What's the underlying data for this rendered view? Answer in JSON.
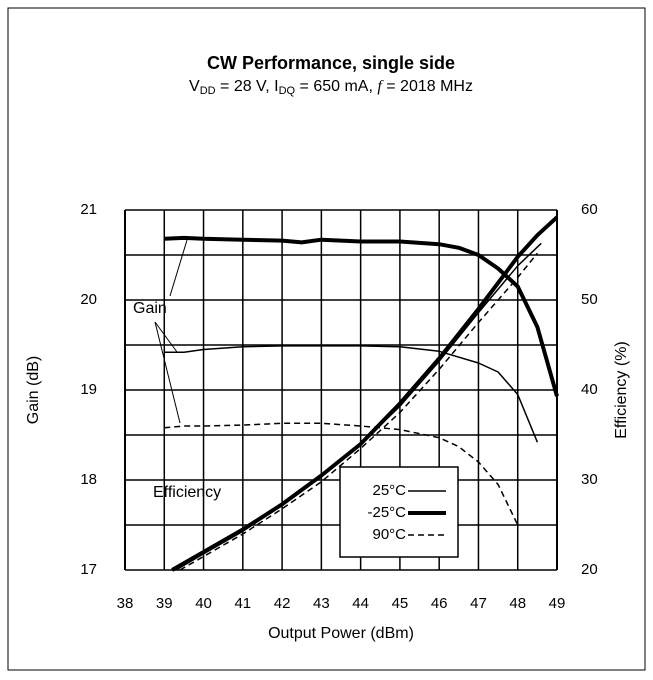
{
  "chart_data": {
    "type": "line",
    "title": "CW Performance, single side",
    "subtitle": [
      "V",
      "DD",
      " = 28 V, I",
      "DQ",
      " = 650 mA, ",
      "f",
      " = 2018 MHz"
    ],
    "xlabel": "Output Power (dBm)",
    "ylabel": "Gain (dB)",
    "y2label": "Efficiency (%)",
    "xlim": [
      38,
      49
    ],
    "xticks": [
      38,
      39,
      40,
      41,
      42,
      43,
      44,
      45,
      46,
      47,
      48,
      49
    ],
    "ylim": [
      17,
      21
    ],
    "yticks": [
      17,
      18,
      19,
      20,
      21
    ],
    "y2lim": [
      20,
      60
    ],
    "y2ticks": [
      20,
      30,
      40,
      50,
      60
    ],
    "grid": true,
    "color": "#000000",
    "annotations": [
      "Gain",
      "Efficiency"
    ],
    "series": [
      {
        "name": "25°C",
        "style": "solid",
        "axis": "y",
        "x": [
          39,
          39.5,
          40,
          41,
          42,
          43,
          44,
          45,
          46,
          47,
          47.5,
          48,
          48.5
        ],
        "values": [
          19.42,
          19.42,
          19.45,
          19.48,
          19.49,
          19.49,
          19.49,
          19.48,
          19.43,
          19.3,
          19.2,
          18.95,
          18.42
        ]
      },
      {
        "name": "-25°C",
        "style": "thick",
        "axis": "y",
        "x": [
          39,
          39.5,
          40,
          41,
          42,
          42.5,
          43,
          44,
          45,
          46,
          46.5,
          47,
          47.5,
          48,
          48.5,
          49
        ],
        "values": [
          20.68,
          20.69,
          20.68,
          20.67,
          20.66,
          20.64,
          20.67,
          20.65,
          20.65,
          20.62,
          20.58,
          20.5,
          20.35,
          20.15,
          19.7,
          18.93
        ]
      },
      {
        "name": "90°C",
        "style": "dashed",
        "axis": "y",
        "x": [
          39,
          39.5,
          40,
          41,
          42,
          43,
          44,
          45,
          46,
          46.5,
          47,
          47.5,
          48
        ],
        "values": [
          18.58,
          18.6,
          18.6,
          18.61,
          18.63,
          18.63,
          18.6,
          18.56,
          18.47,
          18.37,
          18.2,
          17.95,
          17.5
        ]
      },
      {
        "name": "25°C",
        "style": "solid",
        "axis": "y2",
        "x": [
          39.3,
          40,
          41,
          42,
          43,
          44,
          45,
          46,
          47,
          48,
          48.6
        ],
        "values": [
          20,
          21.8,
          24.3,
          27.2,
          30.4,
          34,
          38.2,
          43.2,
          48.6,
          53.8,
          56.3
        ]
      },
      {
        "name": "-25°C",
        "style": "thick",
        "axis": "y2",
        "x": [
          39.2,
          40,
          41,
          42,
          43,
          44,
          45,
          46,
          47,
          48,
          48.5,
          49
        ],
        "values": [
          20,
          22,
          24.5,
          27.3,
          30.5,
          34,
          38.5,
          43.5,
          49,
          54.8,
          57.2,
          59.2
        ]
      },
      {
        "name": "90°C",
        "style": "dashed",
        "axis": "y2",
        "x": [
          39.4,
          40,
          41,
          42,
          43,
          44,
          45,
          46,
          47,
          48,
          48.5
        ],
        "values": [
          20,
          21.5,
          24,
          26.8,
          29.8,
          33.5,
          37.5,
          42.3,
          47.5,
          52.5,
          55.2
        ]
      }
    ]
  }
}
